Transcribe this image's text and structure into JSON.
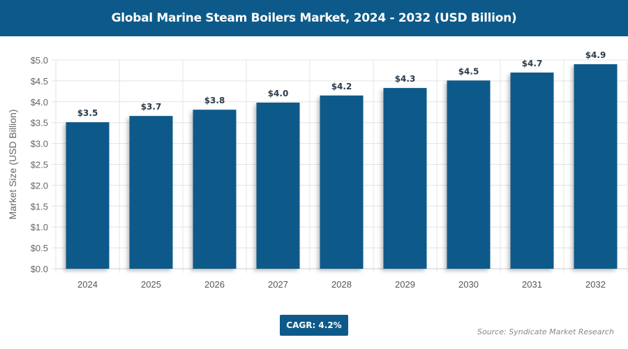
{
  "chart_data": {
    "type": "bar",
    "title": "Global Marine Steam Boilers Market, 2024 - 2032 (USD Billion)",
    "ylabel": "Market Size (USD Billion)",
    "xlabel": "",
    "categories": [
      "2024",
      "2025",
      "2026",
      "2027",
      "2028",
      "2029",
      "2030",
      "2031",
      "2032"
    ],
    "values": [
      3.51,
      3.66,
      3.81,
      3.98,
      4.15,
      4.33,
      4.51,
      4.7,
      4.9
    ],
    "data_labels": [
      "$3.5",
      "$3.7",
      "$3.8",
      "$4.0",
      "$4.2",
      "$4.3",
      "$4.5",
      "$4.7",
      "$4.9"
    ],
    "ylim": [
      0,
      5
    ],
    "yticks": [
      "$0.0",
      "$0.5",
      "$1.0",
      "$1.5",
      "$2.0",
      "$2.5",
      "$3.0",
      "$3.5",
      "$4.0",
      "$4.5",
      "$5.0"
    ],
    "grid": true,
    "bar_color": "#0d5a8a"
  },
  "cagr_label": "CAGR: 4.2%",
  "source": "Source: Syndicate Market Research"
}
